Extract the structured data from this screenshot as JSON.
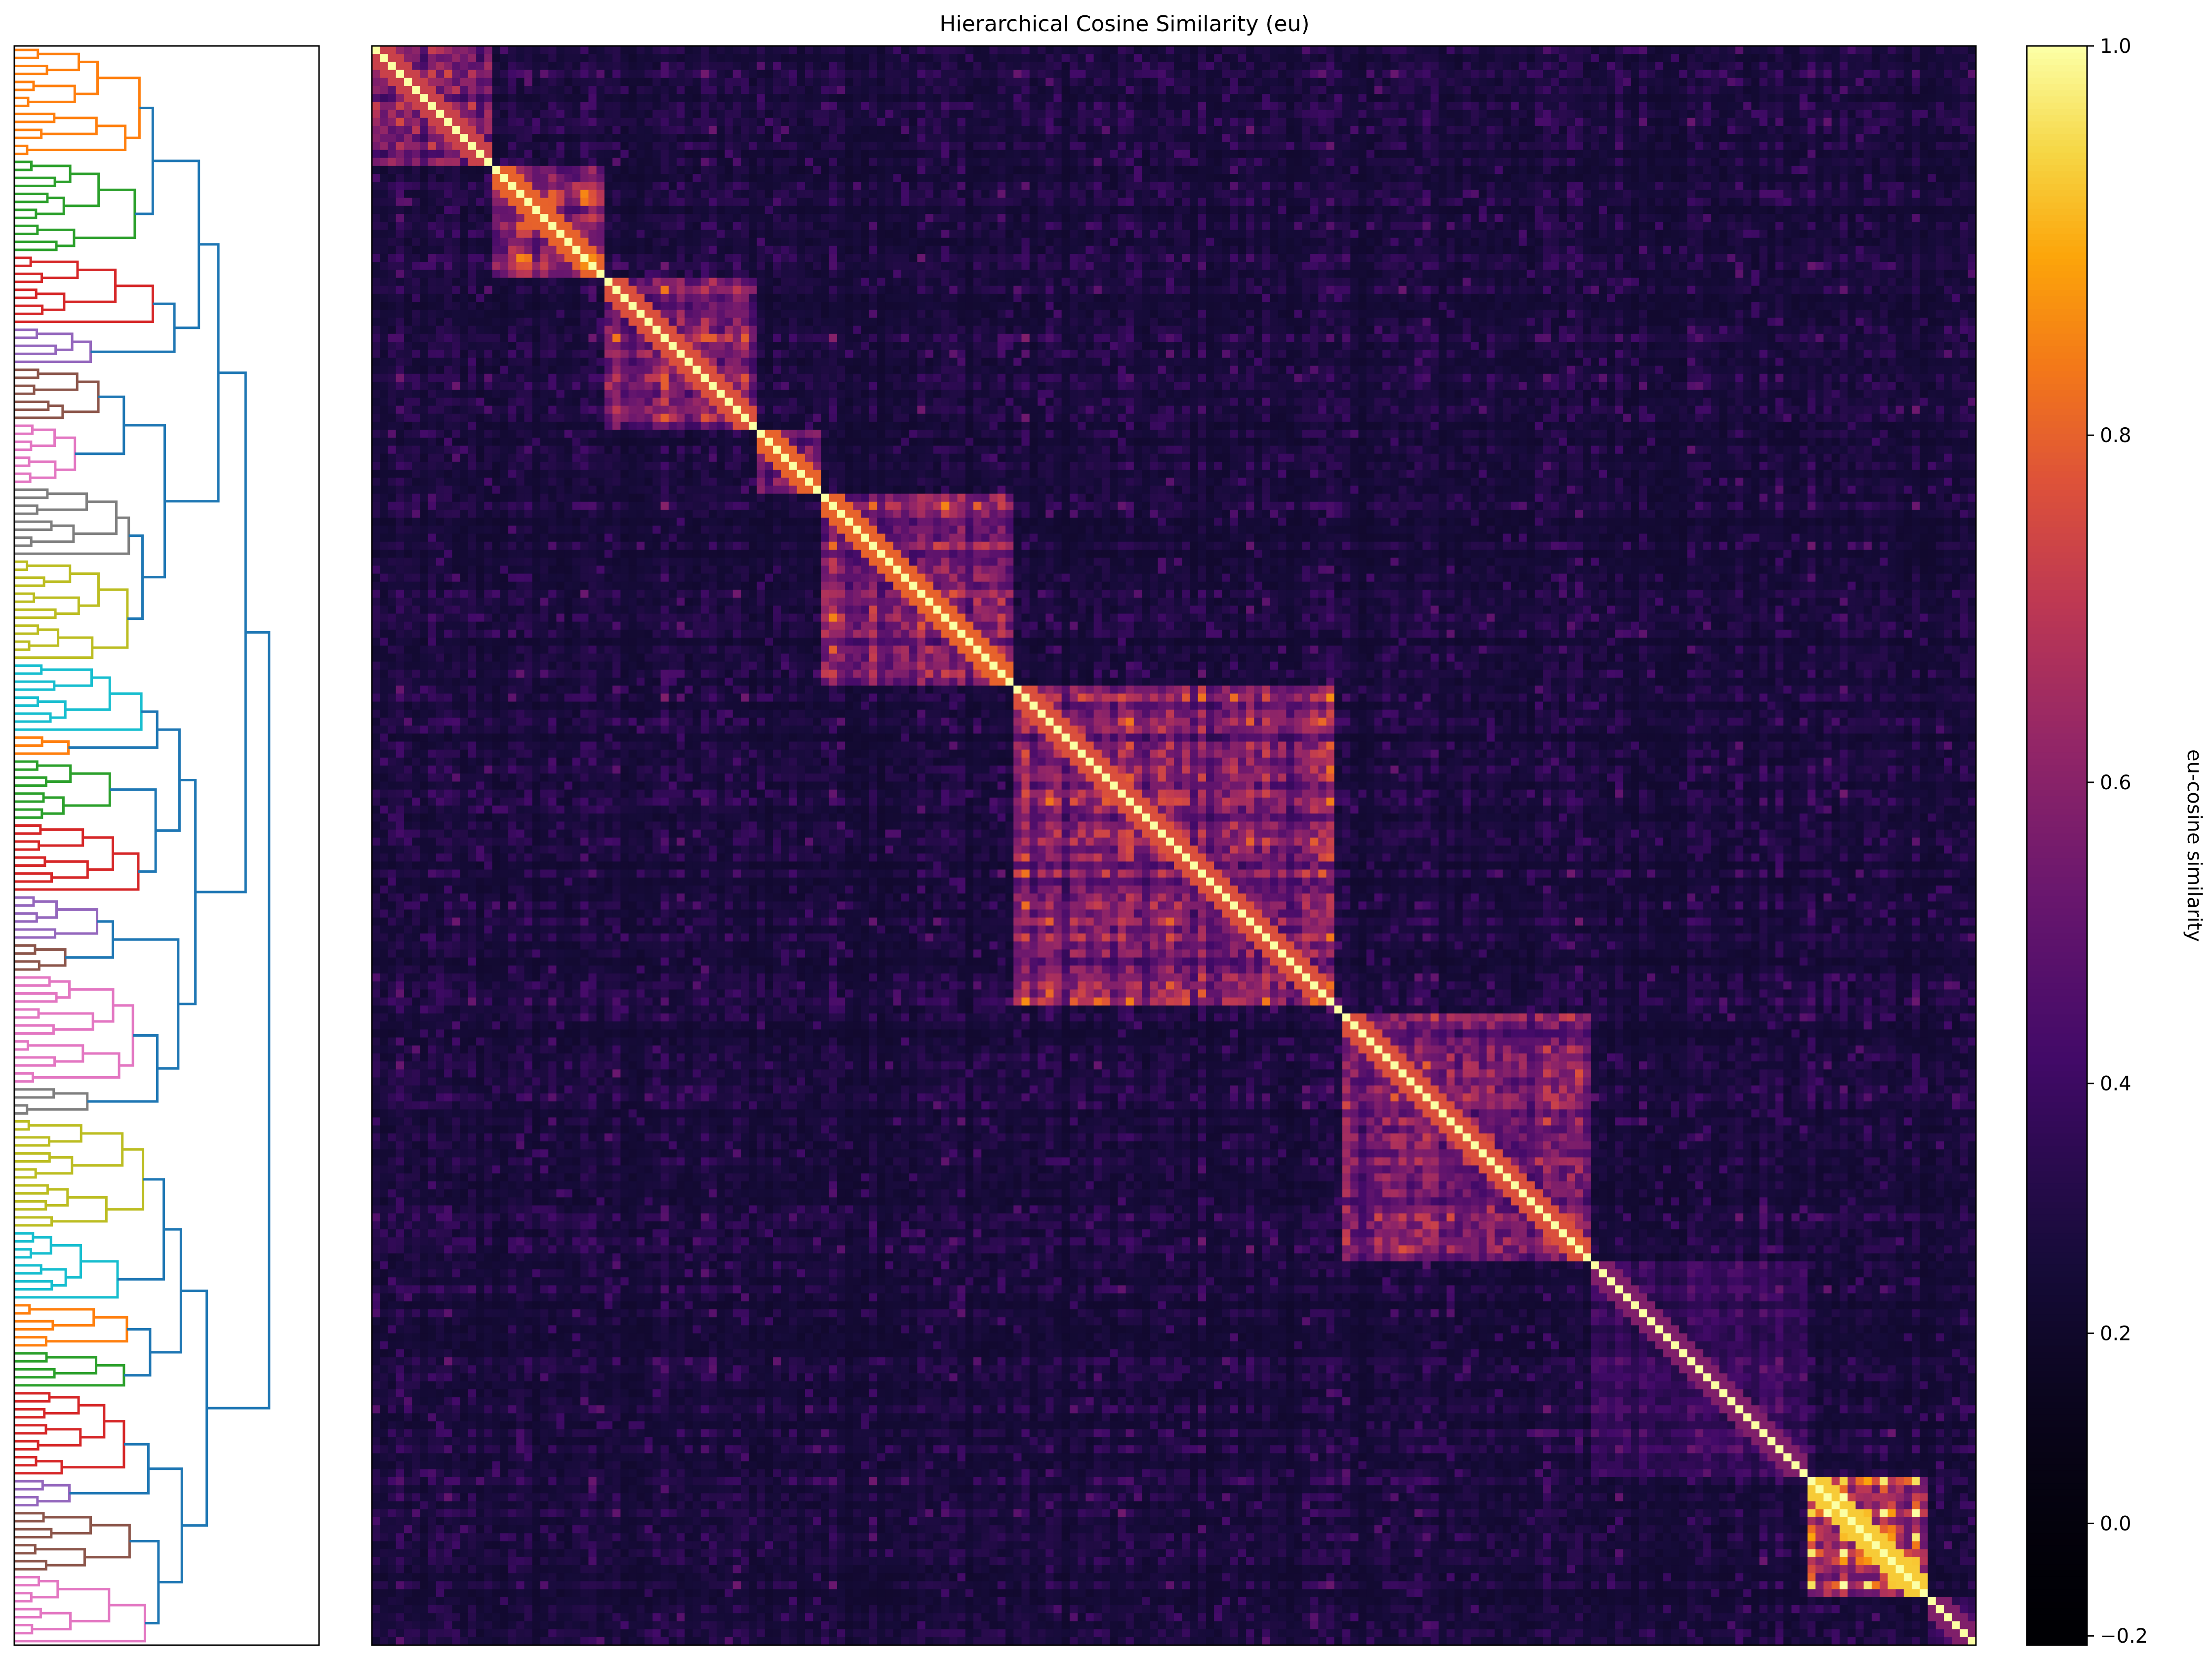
{
  "chart_data": {
    "type": "heatmap",
    "title": "Hierarchical Cosine Similarity (eu)",
    "n_items": 200,
    "colormap": "inferno",
    "value_range": [
      -0.25,
      1.0
    ],
    "colorbar": {
      "label": "eu-cosine similarity",
      "ticks": [
        "1.0",
        "0.8",
        "0.6",
        "0.4",
        "0.2",
        "0.0",
        "−0.2"
      ],
      "tick_values": [
        1.0,
        0.8,
        0.6,
        0.4,
        0.2,
        0.0,
        -0.2
      ],
      "scale": "nonlinear (stretched near low values)"
    },
    "diagonal_value": 1.0,
    "clusters": [
      {
        "start": 0,
        "end": 15,
        "within": 0.45
      },
      {
        "start": 15,
        "end": 29,
        "within": 0.55
      },
      {
        "start": 29,
        "end": 48,
        "within": 0.5
      },
      {
        "start": 48,
        "end": 56,
        "within": 0.55
      },
      {
        "start": 56,
        "end": 80,
        "within": 0.55
      },
      {
        "start": 80,
        "end": 120,
        "within": 0.5
      },
      {
        "start": 120,
        "end": 121,
        "within": 0.3
      },
      {
        "start": 121,
        "end": 152,
        "within": 0.5
      },
      {
        "start": 152,
        "end": 179,
        "within": 0.25
      },
      {
        "start": 179,
        "end": 194,
        "within": 0.75
      },
      {
        "start": 194,
        "end": 200,
        "within": 0.25
      }
    ],
    "background_level": 0.08,
    "dendrogram": {
      "orientation": "left",
      "cluster_colors": [
        "#ff7f0e",
        "#2ca02c",
        "#d62728",
        "#9467bd",
        "#8c564b",
        "#e377c2",
        "#7f7f7f",
        "#bcbd22",
        "#17becf"
      ],
      "link_color": "#1f77b4"
    }
  }
}
